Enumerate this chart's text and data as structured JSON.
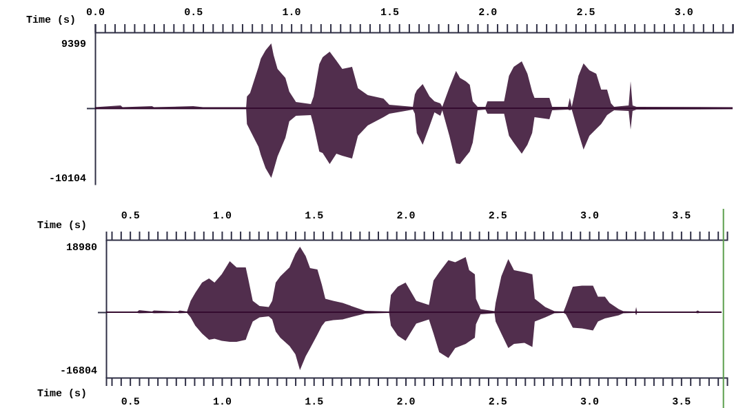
{
  "chart_data": [
    {
      "type": "line",
      "xlabel": "Time (s)",
      "xlim": [
        0,
        3.25
      ],
      "xticks": [
        {
          "value": 0,
          "label": "0.0"
        },
        {
          "value": 0.05,
          "label": null
        },
        {
          "value": 0.1,
          "label": null
        },
        {
          "value": 0.15,
          "label": null
        },
        {
          "value": 0.2,
          "label": null
        },
        {
          "value": 0.25,
          "label": null
        },
        {
          "value": 0.3,
          "label": null
        },
        {
          "value": 0.35,
          "label": null
        },
        {
          "value": 0.4,
          "label": null
        },
        {
          "value": 0.45,
          "label": null
        },
        0.5,
        {
          "value": 0.55,
          "label": null
        },
        {
          "value": 0.6,
          "label": null
        },
        {
          "value": 0.65,
          "label": null
        },
        {
          "value": 0.7,
          "label": null
        },
        {
          "value": 0.75,
          "label": null
        },
        {
          "value": 0.8,
          "label": null
        },
        {
          "value": 0.85,
          "label": null
        },
        {
          "value": 0.9,
          "label": null
        },
        {
          "value": 0.95,
          "label": null
        },
        {
          "value": 1,
          "label": "1.0"
        },
        {
          "value": 1.05,
          "label": null
        },
        {
          "value": 1.1,
          "label": null
        },
        {
          "value": 1.15,
          "label": null
        },
        {
          "value": 1.2,
          "label": null
        },
        {
          "value": 1.25,
          "label": null
        },
        {
          "value": 1.3,
          "label": null
        },
        {
          "value": 1.35,
          "label": null
        },
        {
          "value": 1.4,
          "label": null
        },
        {
          "value": 1.45,
          "label": null
        },
        1.5,
        {
          "value": 1.55,
          "label": null
        },
        {
          "value": 1.6,
          "label": null
        },
        {
          "value": 1.65,
          "label": null
        },
        {
          "value": 1.7,
          "label": null
        },
        {
          "value": 1.75,
          "label": null
        },
        {
          "value": 1.8,
          "label": null
        },
        {
          "value": 1.85,
          "label": null
        },
        {
          "value": 1.9,
          "label": null
        },
        {
          "value": 1.95,
          "label": null
        },
        {
          "value": 2,
          "label": "2.0"
        },
        {
          "value": 2.05,
          "label": null
        },
        {
          "value": 2.1,
          "label": null
        },
        {
          "value": 2.15,
          "label": null
        },
        {
          "value": 2.2,
          "label": null
        },
        {
          "value": 2.25,
          "label": null
        },
        {
          "value": 2.3,
          "label": null
        },
        {
          "value": 2.35,
          "label": null
        },
        {
          "value": 2.4,
          "label": null
        },
        {
          "value": 2.45,
          "label": null
        },
        2.5,
        {
          "value": 2.55,
          "label": null
        },
        {
          "value": 2.6,
          "label": null
        },
        {
          "value": 2.65,
          "label": null
        },
        {
          "value": 2.7,
          "label": null
        },
        {
          "value": 2.75,
          "label": null
        },
        {
          "value": 2.8,
          "label": null
        },
        {
          "value": 2.85,
          "label": null
        },
        {
          "value": 2.9,
          "label": null
        },
        {
          "value": 2.95,
          "label": null
        },
        {
          "value": 3,
          "label": "3.0"
        },
        {
          "value": 3.05,
          "label": null
        },
        {
          "value": 3.1,
          "label": null
        },
        {
          "value": 3.15,
          "label": null
        },
        {
          "value": 3.2,
          "label": null
        },
        {
          "value": 3.25,
          "label": null
        }
      ],
      "ylim": [
        -11100,
        11000
      ],
      "yticks": [
        -10104,
        {
          "value": 0,
          "label": null
        },
        9399
      ],
      "series": [
        {
          "color": "#2b0026",
          "x": [
            0,
            0.13,
            0.14,
            0.29,
            0.3,
            0.5,
            0.55,
            0.77,
            0.774,
            0.79,
            0.833,
            0.845,
            0.869,
            0.898,
            0.91,
            0.93,
            0.97,
            0.99,
            1.024,
            1.1,
            1.114,
            1.143,
            1.16,
            1.196,
            1.23,
            1.26,
            1.31,
            1.34,
            1.39,
            1.47,
            1.5,
            1.62,
            1.63,
            1.64,
            1.67,
            1.705,
            1.73,
            1.76,
            1.77,
            1.806,
            1.84,
            1.86,
            1.89,
            1.91,
            1.925,
            1.95,
            1.99,
            2.0,
            2.085,
            2.11,
            2.134,
            2.175,
            2.204,
            2.228,
            2.24,
            2.316,
            2.33,
            2.41,
            2.42,
            2.43,
            2.464,
            2.49,
            2.52,
            2.555,
            2.58,
            2.61,
            2.63,
            2.646,
            2.72,
            2.73,
            2.74,
            2.76,
            3.25
          ],
          "values": [
            0,
            0,
            0,
            0,
            0,
            0,
            0,
            0,
            0,
            0,
            0,
            0,
            0,
            0,
            0,
            0,
            0,
            0,
            0,
            0,
            0,
            0,
            0,
            0,
            0,
            0,
            0,
            0,
            0,
            0,
            0,
            0,
            0,
            0,
            0,
            0,
            0,
            0,
            0,
            0,
            0,
            0,
            0,
            0,
            0,
            0,
            0,
            0,
            0,
            0,
            0,
            0,
            0,
            0,
            0,
            0,
            0,
            0,
            0,
            0,
            0,
            0,
            0,
            0,
            0,
            0,
            0,
            0,
            0,
            0,
            0,
            0,
            0
          ],
          "upper": [
            150,
            400,
            150,
            300,
            150,
            300,
            150,
            150,
            1700,
            2200,
            6000,
            7200,
            8400,
            9399,
            7700,
            5700,
            4400,
            2400,
            900,
            600,
            1700,
            6400,
            7400,
            8200,
            6900,
            5700,
            6000,
            2900,
            1900,
            1400,
            500,
            200,
            2000,
            2600,
            3500,
            1700,
            1000,
            700,
            200,
            3000,
            5400,
            4400,
            3900,
            3400,
            1000,
            200,
            200,
            1000,
            1000,
            4700,
            6000,
            6800,
            5000,
            2400,
            1500,
            1500,
            200,
            200,
            1500,
            200,
            4700,
            6500,
            5500,
            5000,
            2700,
            2700,
            700,
            200,
            400,
            3900,
            400,
            200,
            150
          ],
          "lower": [
            -150,
            -150,
            -150,
            -150,
            -150,
            -150,
            -150,
            -150,
            -2300,
            -3200,
            -5600,
            -6800,
            -8700,
            -10104,
            -9000,
            -7000,
            -4300,
            -1900,
            -1100,
            -1000,
            -2500,
            -6300,
            -6500,
            -8100,
            -6600,
            -6900,
            -7300,
            -4000,
            -2500,
            -1300,
            -800,
            -200,
            -800,
            -3600,
            -5300,
            -2600,
            -600,
            -1100,
            -300,
            -4000,
            -8000,
            -8100,
            -7000,
            -6300,
            -5000,
            -300,
            -200,
            -800,
            -800,
            -4000,
            -5000,
            -6600,
            -5300,
            -3600,
            -1300,
            -1600,
            -300,
            -200,
            -300,
            -200,
            -3600,
            -6000,
            -4000,
            -3000,
            -2300,
            -1000,
            -600,
            -300,
            -400,
            -3100,
            -400,
            -200,
            -150
          ]
        }
      ]
    },
    {
      "type": "line",
      "xlabel": "Time (s)",
      "x2label": "Time (s)",
      "xlim": [
        0.37,
        3.75
      ],
      "x2lim": [
        0.37,
        3.75
      ],
      "xticks": [
        {
          "value": 0.4,
          "label": null
        },
        {
          "value": 0.45,
          "label": null
        },
        0.5,
        {
          "value": 0.55,
          "label": null
        },
        {
          "value": 0.6,
          "label": null
        },
        {
          "value": 0.65,
          "label": null
        },
        {
          "value": 0.7,
          "label": null
        },
        {
          "value": 0.75,
          "label": null
        },
        {
          "value": 0.8,
          "label": null
        },
        {
          "value": 0.85,
          "label": null
        },
        {
          "value": 0.9,
          "label": null
        },
        {
          "value": 0.95,
          "label": null
        },
        {
          "value": 1,
          "label": "1.0"
        },
        {
          "value": 1.05,
          "label": null
        },
        {
          "value": 1.1,
          "label": null
        },
        {
          "value": 1.15,
          "label": null
        },
        {
          "value": 1.2,
          "label": null
        },
        {
          "value": 1.25,
          "label": null
        },
        {
          "value": 1.3,
          "label": null
        },
        {
          "value": 1.35,
          "label": null
        },
        {
          "value": 1.4,
          "label": null
        },
        {
          "value": 1.45,
          "label": null
        },
        1.5,
        {
          "value": 1.55,
          "label": null
        },
        {
          "value": 1.6,
          "label": null
        },
        {
          "value": 1.65,
          "label": null
        },
        {
          "value": 1.7,
          "label": null
        },
        {
          "value": 1.75,
          "label": null
        },
        {
          "value": 1.8,
          "label": null
        },
        {
          "value": 1.85,
          "label": null
        },
        {
          "value": 1.9,
          "label": null
        },
        {
          "value": 1.95,
          "label": null
        },
        {
          "value": 2,
          "label": "2.0"
        },
        {
          "value": 2.05,
          "label": null
        },
        {
          "value": 2.1,
          "label": null
        },
        {
          "value": 2.15,
          "label": null
        },
        {
          "value": 2.2,
          "label": null
        },
        {
          "value": 2.25,
          "label": null
        },
        {
          "value": 2.3,
          "label": null
        },
        {
          "value": 2.35,
          "label": null
        },
        {
          "value": 2.4,
          "label": null
        },
        {
          "value": 2.45,
          "label": null
        },
        2.5,
        {
          "value": 2.55,
          "label": null
        },
        {
          "value": 2.6,
          "label": null
        },
        {
          "value": 2.65,
          "label": null
        },
        {
          "value": 2.7,
          "label": null
        },
        {
          "value": 2.75,
          "label": null
        },
        {
          "value": 2.8,
          "label": null
        },
        {
          "value": 2.85,
          "label": null
        },
        {
          "value": 2.9,
          "label": null
        },
        {
          "value": 2.95,
          "label": null
        },
        {
          "value": 3,
          "label": "3.0"
        },
        {
          "value": 3.05,
          "label": null
        },
        {
          "value": 3.1,
          "label": null
        },
        {
          "value": 3.15,
          "label": null
        },
        {
          "value": 3.2,
          "label": null
        },
        {
          "value": 3.25,
          "label": null
        },
        {
          "value": 3.3,
          "label": null
        },
        {
          "value": 3.35,
          "label": null
        },
        {
          "value": 3.4,
          "label": null
        },
        {
          "value": 3.45,
          "label": null
        },
        3.5,
        {
          "value": 3.55,
          "label": null
        },
        {
          "value": 3.6,
          "label": null
        },
        {
          "value": 3.65,
          "label": null
        },
        {
          "value": 3.7,
          "label": null
        }
      ],
      "x2ticks": [
        {
          "value": 0.4,
          "label": null
        },
        {
          "value": 0.45,
          "label": null
        },
        0.5,
        {
          "value": 0.55,
          "label": null
        },
        {
          "value": 0.6,
          "label": null
        },
        {
          "value": 0.65,
          "label": null
        },
        {
          "value": 0.7,
          "label": null
        },
        {
          "value": 0.75,
          "label": null
        },
        {
          "value": 0.8,
          "label": null
        },
        {
          "value": 0.85,
          "label": null
        },
        {
          "value": 0.9,
          "label": null
        },
        {
          "value": 0.95,
          "label": null
        },
        {
          "value": 1,
          "label": "1.0"
        },
        {
          "value": 1.05,
          "label": null
        },
        {
          "value": 1.1,
          "label": null
        },
        {
          "value": 1.15,
          "label": null
        },
        {
          "value": 1.2,
          "label": null
        },
        {
          "value": 1.25,
          "label": null
        },
        {
          "value": 1.3,
          "label": null
        },
        {
          "value": 1.35,
          "label": null
        },
        {
          "value": 1.4,
          "label": null
        },
        {
          "value": 1.45,
          "label": null
        },
        1.5,
        {
          "value": 1.55,
          "label": null
        },
        {
          "value": 1.6,
          "label": null
        },
        {
          "value": 1.65,
          "label": null
        },
        {
          "value": 1.7,
          "label": null
        },
        {
          "value": 1.75,
          "label": null
        },
        {
          "value": 1.8,
          "label": null
        },
        {
          "value": 1.85,
          "label": null
        },
        {
          "value": 1.9,
          "label": null
        },
        {
          "value": 1.95,
          "label": null
        },
        {
          "value": 2,
          "label": "2.0"
        },
        {
          "value": 2.05,
          "label": null
        },
        {
          "value": 2.1,
          "label": null
        },
        {
          "value": 2.15,
          "label": null
        },
        {
          "value": 2.2,
          "label": null
        },
        {
          "value": 2.25,
          "label": null
        },
        {
          "value": 2.3,
          "label": null
        },
        {
          "value": 2.35,
          "label": null
        },
        {
          "value": 2.4,
          "label": null
        },
        {
          "value": 2.45,
          "label": null
        },
        2.5,
        {
          "value": 2.55,
          "label": null
        },
        {
          "value": 2.6,
          "label": null
        },
        {
          "value": 2.65,
          "label": null
        },
        {
          "value": 2.7,
          "label": null
        },
        {
          "value": 2.75,
          "label": null
        },
        {
          "value": 2.8,
          "label": null
        },
        {
          "value": 2.85,
          "label": null
        },
        {
          "value": 2.9,
          "label": null
        },
        {
          "value": 2.95,
          "label": null
        },
        {
          "value": 3,
          "label": "3.0"
        },
        {
          "value": 3.05,
          "label": null
        },
        {
          "value": 3.1,
          "label": null
        },
        {
          "value": 3.15,
          "label": null
        },
        {
          "value": 3.2,
          "label": null
        },
        {
          "value": 3.25,
          "label": null
        },
        {
          "value": 3.3,
          "label": null
        },
        {
          "value": 3.35,
          "label": null
        },
        {
          "value": 3.4,
          "label": null
        },
        {
          "value": 3.45,
          "label": null
        },
        3.5,
        {
          "value": 3.55,
          "label": null
        },
        {
          "value": 3.6,
          "label": null
        },
        {
          "value": 3.65,
          "label": null
        },
        {
          "value": 3.7,
          "label": null
        }
      ],
      "ylim": [
        -19000,
        21000
      ],
      "yticks": [
        -16804,
        {
          "value": 0,
          "label": null
        },
        18980
      ],
      "ref_lines": [
        {
          "axis": "x",
          "value": 3.73,
          "color": "#5a9e4b"
        }
      ],
      "series": [
        {
          "color": "#2b0026",
          "x": [
            0.37,
            0.54,
            0.55,
            0.62,
            0.63,
            0.76,
            0.77,
            0.81,
            0.83,
            0.855,
            0.892,
            0.93,
            0.96,
            0.999,
            1.043,
            1.08,
            1.13,
            1.143,
            1.168,
            1.205,
            1.255,
            1.274,
            1.293,
            1.318,
            1.368,
            1.4,
            1.425,
            1.456,
            1.48,
            1.52,
            1.544,
            1.563,
            1.606,
            1.657,
            1.72,
            1.78,
            1.91,
            1.92,
            1.957,
            2.0,
            2.058,
            2.127,
            2.152,
            2.183,
            2.233,
            2.27,
            2.327,
            2.346,
            2.377,
            2.383,
            2.408,
            2.484,
            2.49,
            2.521,
            2.559,
            2.59,
            2.647,
            2.69,
            2.703,
            2.76,
            2.81,
            2.86,
            2.872,
            2.91,
            2.96,
            3.02,
            3.047,
            3.085,
            3.11,
            3.16,
            3.185,
            3.25,
            3.255,
            3.26,
            3.58,
            3.59,
            3.6,
            3.72
          ],
          "values": [
            0,
            0,
            0,
            0,
            0,
            0,
            0,
            0,
            0,
            0,
            0,
            0,
            0,
            0,
            0,
            0,
            0,
            0,
            0,
            0,
            0,
            0,
            0,
            0,
            0,
            0,
            0,
            0,
            0,
            0,
            0,
            0,
            0,
            0,
            0,
            0,
            0,
            0,
            0,
            0,
            0,
            0,
            0,
            0,
            0,
            0,
            0,
            0,
            0,
            0,
            0,
            0,
            0,
            0,
            0,
            0,
            0,
            0,
            0,
            0,
            0,
            0,
            0,
            0,
            0,
            0,
            0,
            0,
            0,
            0,
            0,
            0,
            0,
            0,
            0,
            0,
            0,
            0
          ],
          "upper": [
            200,
            200,
            600,
            200,
            500,
            200,
            500,
            200,
            3300,
            5600,
            8600,
            9800,
            8600,
            11000,
            14800,
            13000,
            13000,
            9800,
            3300,
            1800,
            1500,
            3300,
            8600,
            10400,
            13000,
            16900,
            18980,
            16300,
            12800,
            12400,
            8000,
            3900,
            3300,
            2700,
            1500,
            400,
            200,
            5000,
            7400,
            8600,
            3300,
            2100,
            9200,
            11600,
            15100,
            14500,
            16000,
            12200,
            11000,
            3900,
            900,
            300,
            2700,
            10400,
            15400,
            12200,
            11600,
            11000,
            3900,
            1500,
            300,
            200,
            1800,
            7400,
            7700,
            7700,
            4500,
            4500,
            2700,
            900,
            300,
            200,
            1500,
            200,
            200,
            500,
            200,
            200
          ],
          "lower": [
            -200,
            -200,
            -300,
            -200,
            -300,
            -200,
            -300,
            -200,
            -1500,
            -3900,
            -6200,
            -8000,
            -7700,
            -8300,
            -8600,
            -8600,
            -8000,
            -6000,
            -2700,
            -1500,
            -1200,
            -2100,
            -5600,
            -7400,
            -9800,
            -12200,
            -16804,
            -12800,
            -10500,
            -6500,
            -4000,
            -2700,
            -2300,
            -2100,
            -1200,
            -400,
            -200,
            -3900,
            -6800,
            -8300,
            -3300,
            -2100,
            -6200,
            -11600,
            -13300,
            -10400,
            -9200,
            -8500,
            -7400,
            -3500,
            -600,
            -300,
            -2700,
            -6200,
            -10400,
            -9200,
            -8900,
            -10100,
            -2700,
            -1500,
            -300,
            -200,
            -600,
            -4500,
            -4700,
            -5300,
            -2700,
            -1800,
            -1500,
            -900,
            -300,
            -200,
            -900,
            -200,
            -200,
            -300,
            -200,
            -200
          ]
        }
      ]
    }
  ]
}
